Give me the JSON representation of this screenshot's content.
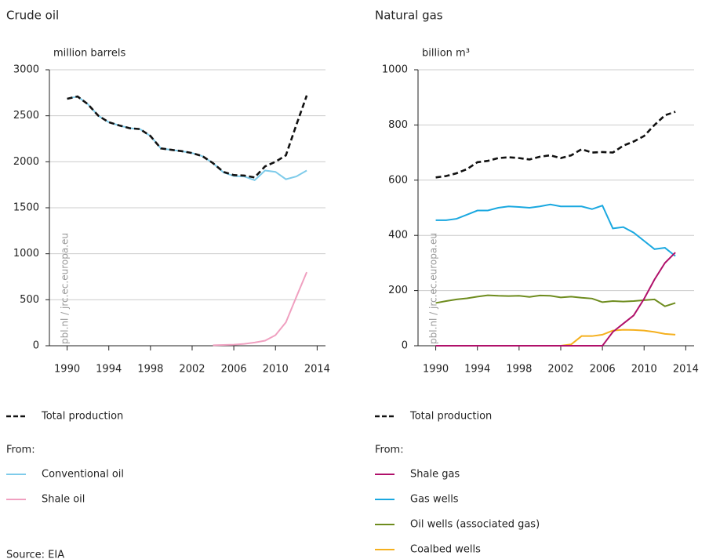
{
  "chart_data": [
    {
      "type": "line",
      "title": "Crude oil",
      "y_label": "million barrels",
      "legend_note": "From:",
      "x": [
        1990,
        1991,
        1992,
        1993,
        1994,
        1995,
        1996,
        1997,
        1998,
        1999,
        2000,
        2001,
        2002,
        2003,
        2004,
        2005,
        2006,
        2007,
        2008,
        2009,
        2010,
        2011,
        2012,
        2013
      ],
      "xlim": [
        1988.3,
        2014.8
      ],
      "xticks": [
        1990,
        1994,
        1998,
        2002,
        2006,
        2010,
        2014
      ],
      "ylim": [
        0,
        3000
      ],
      "yticks": [
        0,
        500,
        1000,
        1500,
        2000,
        2500,
        3000
      ],
      "grid": true,
      "series": [
        {
          "name": "Total production",
          "color": "#111111",
          "dashed": true,
          "values": [
            2685,
            2710,
            2625,
            2500,
            2430,
            2395,
            2365,
            2355,
            2280,
            2145,
            2130,
            2115,
            2095,
            2060,
            1985,
            1890,
            1855,
            1850,
            1830,
            1950,
            2000,
            2070,
            2400,
            2720
          ]
        },
        {
          "name": "Conventional oil",
          "color": "#7ecbea",
          "values": [
            2685,
            2710,
            2625,
            2500,
            2430,
            2395,
            2365,
            2355,
            2280,
            2145,
            2130,
            2115,
            2095,
            2060,
            1985,
            1885,
            1845,
            1840,
            1800,
            1905,
            1890,
            1810,
            1840,
            1905
          ]
        },
        {
          "name": "Shale oil",
          "color": "#f0a0c0",
          "values": [
            null,
            null,
            null,
            null,
            null,
            null,
            null,
            null,
            null,
            null,
            null,
            null,
            null,
            null,
            5,
            8,
            12,
            20,
            35,
            55,
            115,
            255,
            530,
            800
          ]
        }
      ]
    },
    {
      "type": "line",
      "title": "Natural gas",
      "y_label": "billion m³",
      "legend_note": "From:",
      "x": [
        1990,
        1991,
        1992,
        1993,
        1994,
        1995,
        1996,
        1997,
        1998,
        1999,
        2000,
        2001,
        2002,
        2003,
        2004,
        2005,
        2006,
        2007,
        2008,
        2009,
        2010,
        2011,
        2012,
        2013
      ],
      "xlim": [
        1988.3,
        2014.8
      ],
      "xticks": [
        1990,
        1994,
        1998,
        2002,
        2006,
        2010,
        2014
      ],
      "ylim": [
        0,
        1000
      ],
      "yticks": [
        0,
        200,
        400,
        600,
        800,
        1000
      ],
      "grid": true,
      "series": [
        {
          "name": "Total production",
          "color": "#111111",
          "dashed": true,
          "values": [
            610,
            615,
            625,
            640,
            665,
            670,
            680,
            683,
            680,
            675,
            685,
            690,
            680,
            690,
            712,
            700,
            702,
            700,
            725,
            740,
            760,
            800,
            835,
            848
          ]
        },
        {
          "name": "Shale gas",
          "color": "#b0106a",
          "values": [
            0,
            0,
            0,
            0,
            0,
            0,
            0,
            0,
            0,
            0,
            0,
            0,
            0,
            0,
            0,
            0,
            0,
            50,
            80,
            110,
            170,
            240,
            300,
            338
          ]
        },
        {
          "name": "Gas wells",
          "color": "#1aa8e0",
          "values": [
            455,
            455,
            460,
            475,
            490,
            490,
            500,
            505,
            503,
            500,
            505,
            512,
            505,
            505,
            505,
            495,
            508,
            425,
            430,
            410,
            380,
            350,
            355,
            325
          ]
        },
        {
          "name": "Oil wells (associated gas)",
          "color": "#6e8c1e",
          "values": [
            155,
            162,
            168,
            172,
            178,
            183,
            181,
            180,
            181,
            177,
            182,
            181,
            175,
            178,
            174,
            171,
            158,
            162,
            160,
            162,
            165,
            168,
            143,
            155
          ]
        },
        {
          "name": "Coalbed wells",
          "color": "#f5b01e",
          "values": [
            0,
            0,
            0,
            0,
            0,
            0,
            0,
            0,
            0,
            0,
            0,
            0,
            0,
            5,
            35,
            35,
            40,
            55,
            58,
            57,
            55,
            50,
            43,
            40
          ]
        }
      ]
    }
  ],
  "watermark": "pbl.nl / jrc.ec.europa.eu",
  "source": "Source: EIA"
}
